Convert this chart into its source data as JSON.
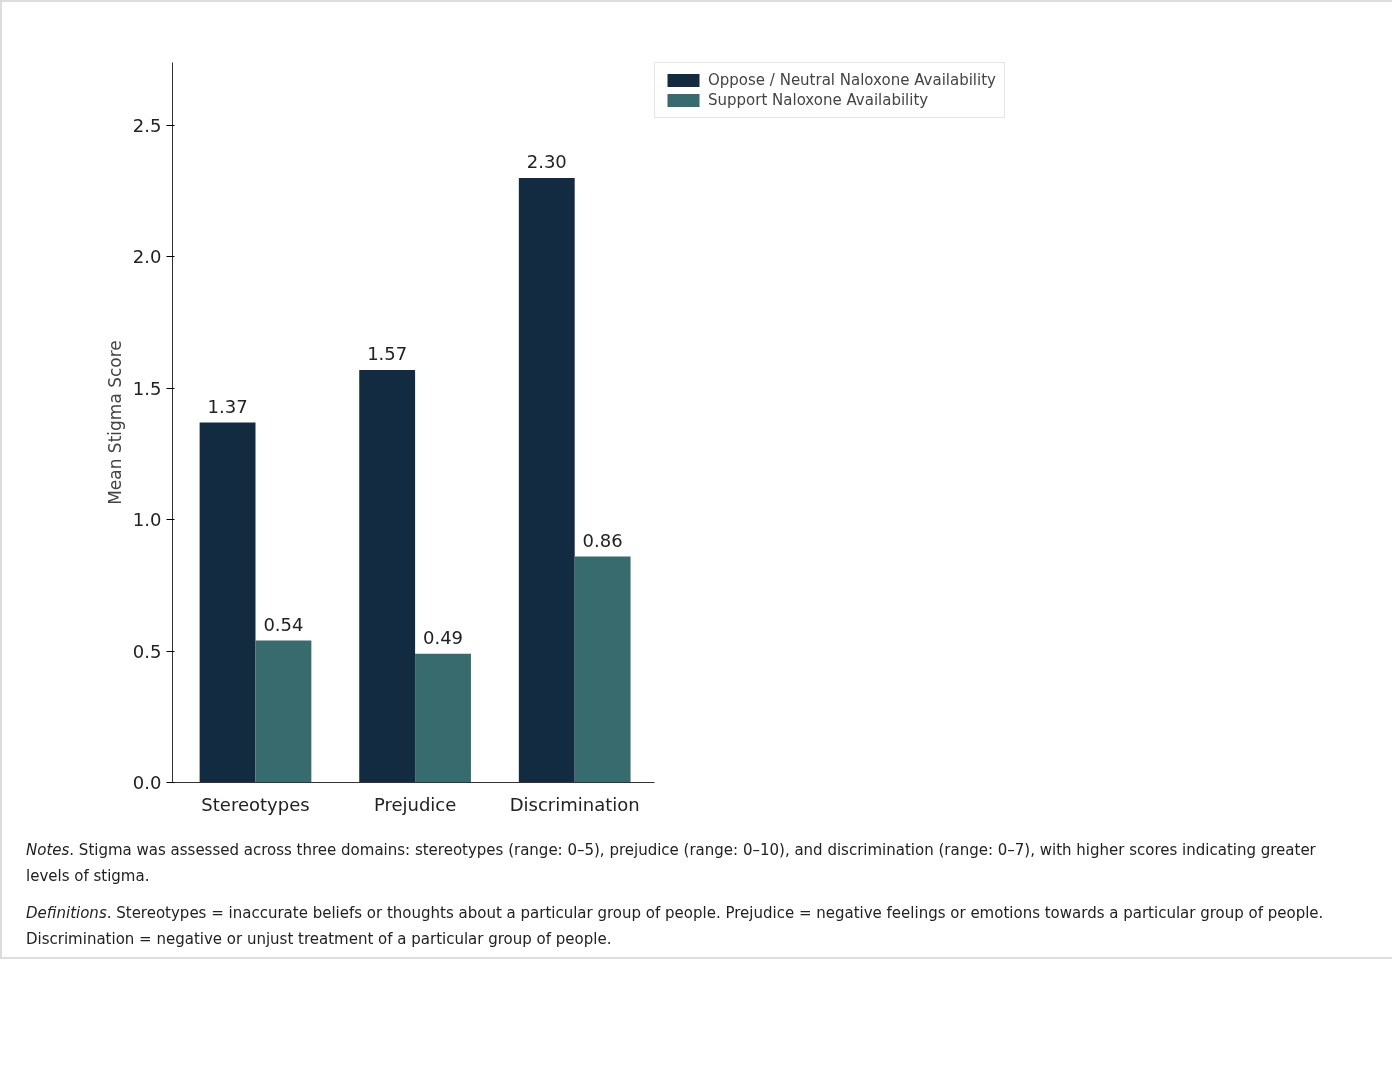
{
  "chart_data": {
    "type": "bar",
    "ylabel": "Mean Stigma Score",
    "categories": [
      "Stereotypes",
      "Prejudice",
      "Discrimination"
    ],
    "series": [
      {
        "name": "Oppose / Neutral Naloxone Availability",
        "color": "#132b40",
        "values": [
          1.37,
          1.57,
          2.3
        ],
        "value_labels": [
          "1.37",
          "1.57",
          "2.30"
        ]
      },
      {
        "name": "Support Naloxone Availability",
        "color": "#376b6d",
        "values": [
          0.54,
          0.49,
          0.86
        ],
        "value_labels": [
          "0.54",
          "0.49",
          "0.86"
        ]
      }
    ],
    "ylim": [
      0,
      2.74
    ],
    "yticks": [
      {
        "value": 0,
        "label": "0.0"
      },
      {
        "value": 0.5,
        "label": "0.5"
      },
      {
        "value": 1,
        "label": "1.0"
      },
      {
        "value": 1.5,
        "label": "1.5"
      },
      {
        "value": 2,
        "label": "2.0"
      },
      {
        "value": 2.5,
        "label": "2.5"
      }
    ],
    "grid": false,
    "legend": "top right",
    "annotations": [
      "Notes. Stigma was assessed across three domains: stereotypes (range: 0–5), prejudice (range: 0–10), and discrimination (range: 0–7), with higher scores indicating greater levels of stigma.",
      "Definitions. Stereotypes = inaccurate beliefs or thoughts about a particular group of people. Prejudice = negative feelings or emotions towards a particular group of people. Discrimination = negative or unjust treatment of a particular group of people."
    ]
  }
}
